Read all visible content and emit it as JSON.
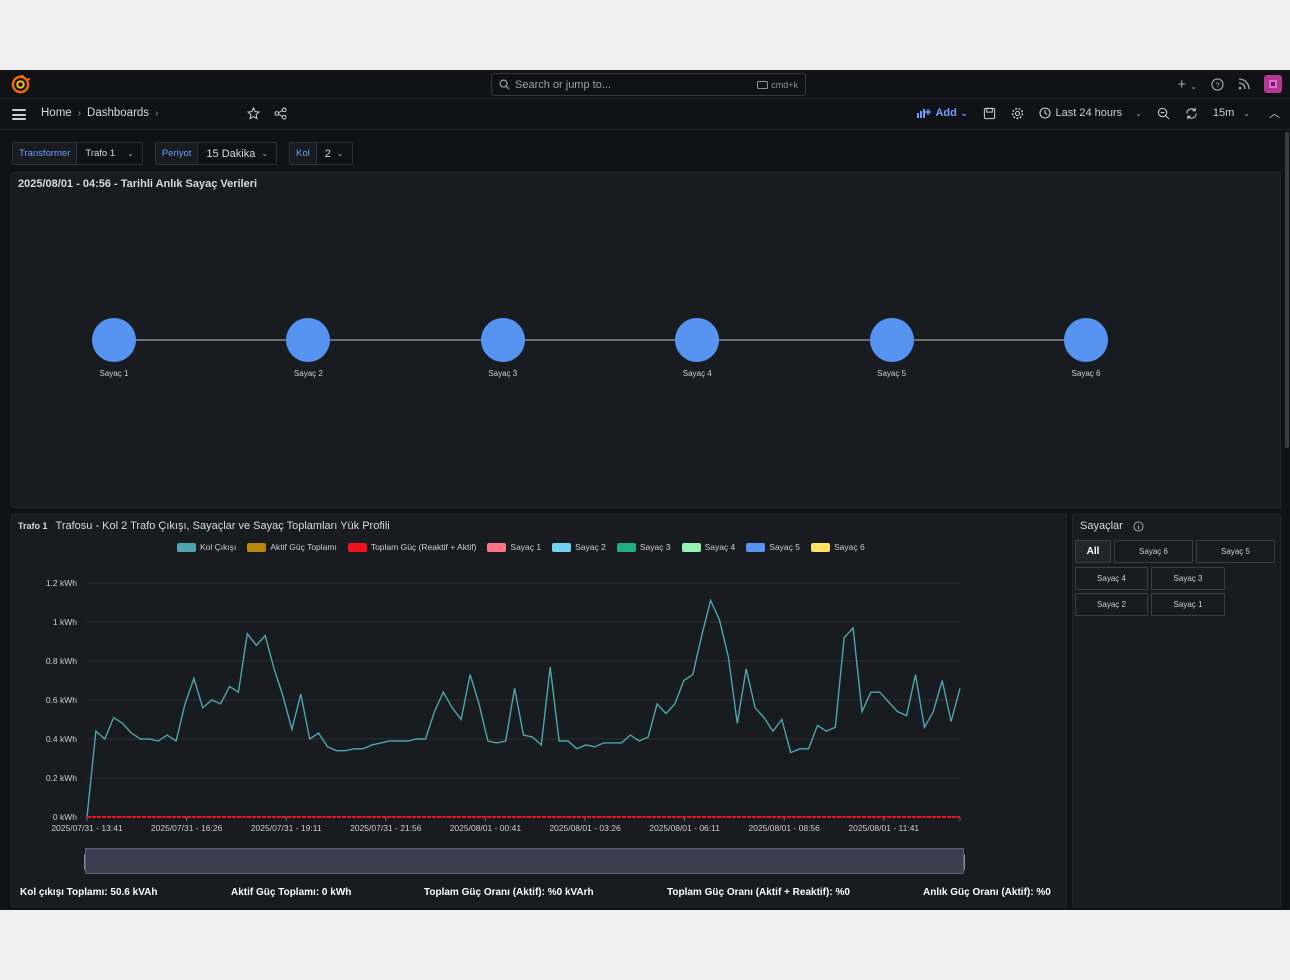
{
  "topbar": {
    "search_placeholder": "Search or jump to...",
    "search_shortcut": "cmd+k"
  },
  "navbar": {
    "breadcrumb": [
      "Home",
      "Dashboards"
    ],
    "add_label": "Add",
    "time_range": "Last 24 hours",
    "refresh_interval": "15m"
  },
  "variables": [
    {
      "label": "Transformer",
      "value": "Trafo 1"
    },
    {
      "label": "Periyot",
      "value": "15 Dakika"
    },
    {
      "label": "Kol",
      "value": "2"
    }
  ],
  "node_panel": {
    "title": "2025/08/01 - 04:56 - Tarihli Anlık Sayaç Verileri",
    "nodes": [
      "Sayaç 1",
      "Sayaç 2",
      "Sayaç 3",
      "Sayaç 4",
      "Sayaç 5",
      "Sayaç 6"
    ],
    "node_color": "#5794f2"
  },
  "chart_panel": {
    "title_prefix": "Trafo 1",
    "title": "Trafosu - Kol 2 Trafo Çıkışı, Sayaçlar ve Sayaç Toplamları Yük Profili"
  },
  "chart_data": {
    "type": "line",
    "yunit": "kWh",
    "ylim": [
      0,
      1.2
    ],
    "yticks": [
      "0 kWh",
      "0.2 kWh",
      "0.4 kWh",
      "0.6 kWh",
      "0.8 kWh",
      "1 kWh",
      "1.2 kWh"
    ],
    "xticks": [
      "2025/07/31 - 13:41",
      "2025/07/31 - 16:26",
      "2025/07/31 - 19:11",
      "2025/07/31 - 21:56",
      "2025/08/01 - 00:41",
      "2025/08/01 - 03:26",
      "2025/08/01 - 06:11",
      "2025/08/01 - 08:56",
      "2025/08/01 - 11:41"
    ],
    "grid": true,
    "legend_position": "top",
    "series": [
      {
        "name": "Kol Çıkışı",
        "color": "#4ea5ac",
        "values": [
          0,
          0.44,
          0.4,
          0.51,
          0.48,
          0.43,
          0.4,
          0.4,
          0.39,
          0.42,
          0.39,
          0.58,
          0.71,
          0.56,
          0.6,
          0.58,
          0.67,
          0.64,
          0.94,
          0.88,
          0.93,
          0.76,
          0.62,
          0.45,
          0.63,
          0.4,
          0.43,
          0.36,
          0.34,
          0.34,
          0.35,
          0.35,
          0.37,
          0.38,
          0.39,
          0.39,
          0.39,
          0.4,
          0.4,
          0.54,
          0.64,
          0.56,
          0.5,
          0.73,
          0.58,
          0.39,
          0.38,
          0.39,
          0.66,
          0.42,
          0.41,
          0.37,
          0.77,
          0.39,
          0.39,
          0.35,
          0.37,
          0.36,
          0.38,
          0.38,
          0.38,
          0.42,
          0.39,
          0.41,
          0.58,
          0.53,
          0.58,
          0.7,
          0.73,
          0.93,
          1.11,
          1.01,
          0.82,
          0.48,
          0.76,
          0.56,
          0.51,
          0.44,
          0.5,
          0.33,
          0.35,
          0.35,
          0.47,
          0.44,
          0.46,
          0.92,
          0.97,
          0.54,
          0.64,
          0.64,
          0.59,
          0.54,
          0.52,
          0.73,
          0.46,
          0.54,
          0.7,
          0.49,
          0.66
        ]
      },
      {
        "name": "Aktif Güç Toplamı",
        "color": "#b8860b",
        "values": []
      },
      {
        "name": "Toplam Güç (Reaktif + Aktif)",
        "color": "#f2111f",
        "values": [
          0,
          0,
          0,
          0,
          0,
          0,
          0,
          0,
          0,
          0
        ]
      },
      {
        "name": "Sayaç 1",
        "color": "#ff7383",
        "values": []
      },
      {
        "name": "Sayaç 2",
        "color": "#73d1f2",
        "values": []
      },
      {
        "name": "Sayaç 3",
        "color": "#1fae86",
        "values": []
      },
      {
        "name": "Sayaç 4",
        "color": "#96f2b0",
        "values": []
      },
      {
        "name": "Sayaç 5",
        "color": "#5794f2",
        "values": []
      },
      {
        "name": "Sayaç 6",
        "color": "#ffe066",
        "values": []
      }
    ]
  },
  "footer": {
    "kol_cikisi": "Kol çıkışı Toplamı: 50.6 kVAh",
    "aktif_guc": "Aktif Güç Toplamı: 0 kWh",
    "toplam_guc_orani": "Toplam Güç Oranı (Aktif): %0 kVArh",
    "toplam_guc_orani_reaktif": "Toplam Güç Oranı (Aktif + Reaktif): %0",
    "anlik_guc_orani": "Anlık Güç Oranı (Aktif): %0"
  },
  "sayaclar_panel": {
    "title": "Sayaçlar",
    "buttons": [
      "All",
      "Sayaç 6",
      "Sayaç 5",
      "Sayaç 4",
      "Sayaç 3",
      "Sayaç 2",
      "Sayaç 1"
    ],
    "active": "All"
  }
}
